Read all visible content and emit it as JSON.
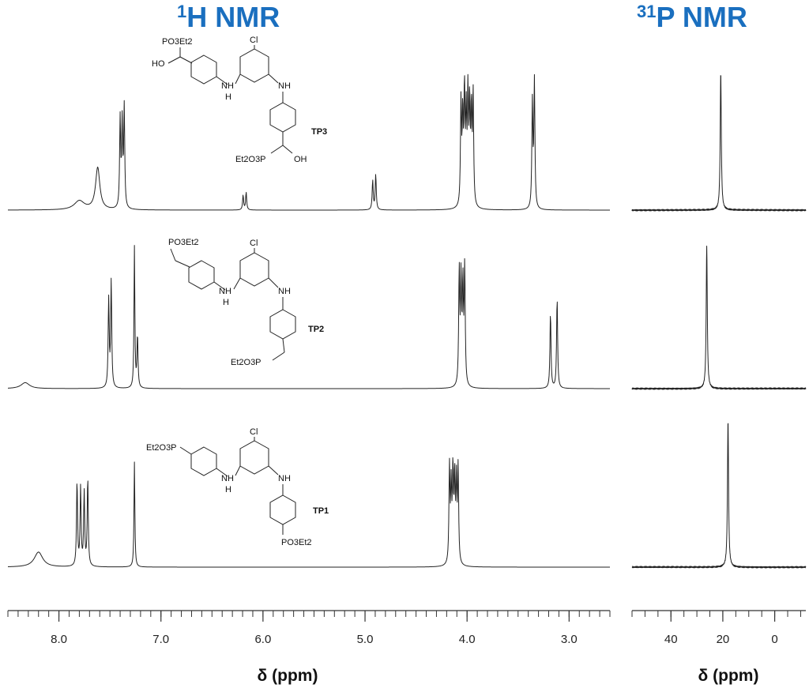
{
  "chart_data": [
    {
      "type": "line",
      "title": "1H NMR",
      "title_superscript": "1",
      "title_main": "H NMR",
      "xlabel": "δ (ppm)",
      "xlim": [
        8.5,
        2.6
      ],
      "x_reversed": true,
      "xticks": [
        "8.0",
        "7.0",
        "6.0",
        "5.0",
        "4.0",
        "3.0"
      ],
      "series": [
        {
          "name": "TP3",
          "peaks": [
            {
              "ppm": 7.8,
              "height": 0.06,
              "width": 0.06
            },
            {
              "ppm": 7.62,
              "height": 0.28,
              "width": 0.025
            },
            {
              "ppm": 7.38,
              "height": 0.68,
              "width": 0.006,
              "multiplet": 3,
              "spacing": 0.02
            },
            {
              "ppm": 6.18,
              "height": 0.12,
              "width": 0.006,
              "multiplet": 2,
              "spacing": 0.03
            },
            {
              "ppm": 4.91,
              "height": 0.24,
              "width": 0.006,
              "multiplet": 2,
              "spacing": 0.03
            },
            {
              "ppm": 4.0,
              "height": 0.75,
              "width": 0.006,
              "multiplet": 8,
              "spacing": 0.017
            },
            {
              "ppm": 3.35,
              "height": 0.86,
              "width": 0.006,
              "multiplet": 2,
              "spacing": 0.02
            }
          ]
        },
        {
          "name": "TP2",
          "peaks": [
            {
              "ppm": 8.33,
              "height": 0.04,
              "width": 0.05
            },
            {
              "ppm": 7.5,
              "height": 0.72,
              "width": 0.006,
              "multiplet": 2,
              "spacing": 0.025
            },
            {
              "ppm": 7.26,
              "height": 0.94,
              "width": 0.005
            },
            {
              "ppm": 7.23,
              "height": 0.35,
              "width": 0.006
            },
            {
              "ppm": 4.05,
              "height": 0.8,
              "width": 0.006,
              "multiplet": 4,
              "spacing": 0.018
            },
            {
              "ppm": 3.15,
              "height": 0.62,
              "width": 0.006,
              "multiplet": 2,
              "spacing": 0.065
            }
          ]
        },
        {
          "name": "TP1",
          "peaks": [
            {
              "ppm": 8.2,
              "height": 0.1,
              "width": 0.05
            },
            {
              "ppm": 7.77,
              "height": 0.6,
              "width": 0.006,
              "multiplet": 4,
              "spacing": 0.035
            },
            {
              "ppm": 7.26,
              "height": 0.7,
              "width": 0.005
            },
            {
              "ppm": 4.13,
              "height": 0.64,
              "width": 0.006,
              "multiplet": 6,
              "spacing": 0.017
            }
          ]
        }
      ]
    },
    {
      "type": "line",
      "title": "31P NMR",
      "title_superscript": "31",
      "title_main": "P NMR",
      "xlabel": "δ (ppm)",
      "xlim": [
        55,
        -12
      ],
      "x_reversed": true,
      "xticks": [
        "40",
        "20",
        "0"
      ],
      "series": [
        {
          "name": "TP3",
          "peaks": [
            {
              "ppm": 20.8,
              "height": 0.92,
              "width": 0.25
            }
          ]
        },
        {
          "name": "TP2",
          "peaks": [
            {
              "ppm": 26.2,
              "height": 0.95,
              "width": 0.25
            }
          ]
        },
        {
          "name": "TP1",
          "peaks": [
            {
              "ppm": 18.0,
              "height": 0.98,
              "width": 0.25
            }
          ]
        }
      ]
    }
  ],
  "colors": {
    "title": "#1a6fbf",
    "spectrum": "#222222",
    "axis": "#333333"
  },
  "molecules": [
    {
      "name": "TP3",
      "substituent_top": "PO3Et2",
      "oh_top": "HO",
      "cl": "Cl",
      "nh_left": "NH",
      "nh_left_h": "H",
      "nh_right": "NH",
      "bottom_label": "Et2O3P",
      "oh_bottom": "OH",
      "label": "TP3"
    },
    {
      "name": "TP2",
      "substituent_top": "PO3Et2",
      "cl": "Cl",
      "nh_left": "NH",
      "nh_left_h": "H",
      "nh_right": "NH",
      "bottom_label": "Et2O3P",
      "label": "TP2"
    },
    {
      "name": "TP1",
      "left_label": "Et2O3P",
      "cl": "Cl",
      "nh_left": "NH",
      "nh_left_h": "H",
      "nh_right": "NH",
      "bottom_label": "PO3Et2",
      "label": "TP1"
    }
  ]
}
